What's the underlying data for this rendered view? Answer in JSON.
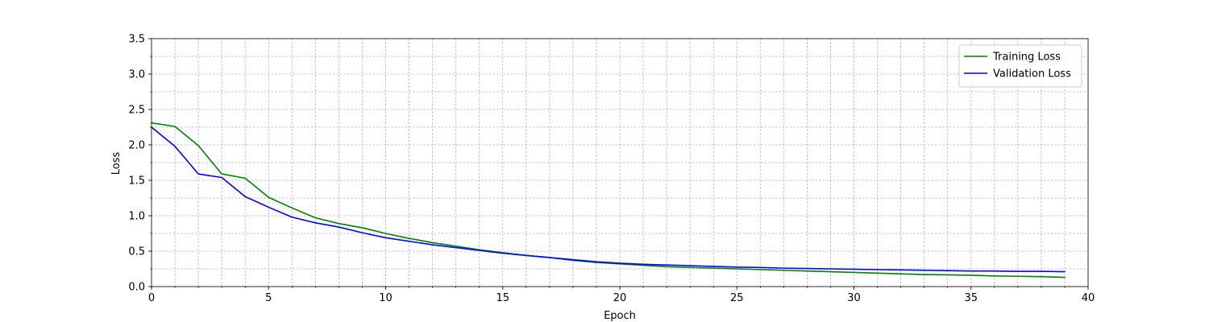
{
  "chart_data": {
    "type": "line",
    "title": "",
    "xlabel": "Epoch",
    "ylabel": "Loss",
    "xlim": [
      0,
      40
    ],
    "ylim": [
      0,
      3.5
    ],
    "xticks": [
      0,
      5,
      10,
      15,
      20,
      25,
      30,
      35,
      40
    ],
    "yticks": [
      0.0,
      0.5,
      1.0,
      1.5,
      2.0,
      2.5,
      3.0,
      3.5
    ],
    "xtick_labels": [
      "0",
      "5",
      "10",
      "15",
      "20",
      "25",
      "30",
      "35",
      "40"
    ],
    "ytick_labels": [
      "0.0",
      "0.5",
      "1.0",
      "1.5",
      "2.0",
      "2.5",
      "3.0",
      "3.5"
    ],
    "grid": true,
    "legend_position": "top-right",
    "x": [
      0,
      1,
      2,
      3,
      4,
      5,
      6,
      7,
      8,
      9,
      10,
      11,
      12,
      13,
      14,
      15,
      16,
      17,
      18,
      19,
      20,
      21,
      22,
      23,
      24,
      25,
      26,
      27,
      28,
      29,
      30,
      31,
      32,
      33,
      34,
      35,
      36,
      37,
      38,
      39
    ],
    "series": [
      {
        "name": "Training Loss",
        "color": "#008000",
        "values": [
          2.31,
          2.26,
          1.99,
          1.59,
          1.53,
          1.26,
          1.11,
          0.97,
          0.89,
          0.83,
          0.75,
          0.68,
          0.62,
          0.57,
          0.52,
          0.48,
          0.44,
          0.41,
          0.37,
          0.34,
          0.32,
          0.3,
          0.28,
          0.27,
          0.26,
          0.25,
          0.24,
          0.23,
          0.22,
          0.21,
          0.2,
          0.19,
          0.18,
          0.17,
          0.165,
          0.16,
          0.15,
          0.145,
          0.14,
          0.13
        ]
      },
      {
        "name": "Validation Loss",
        "color": "#0000ff",
        "values": [
          2.25,
          1.98,
          1.59,
          1.54,
          1.27,
          1.12,
          0.98,
          0.9,
          0.84,
          0.76,
          0.69,
          0.64,
          0.59,
          0.55,
          0.51,
          0.47,
          0.44,
          0.41,
          0.38,
          0.35,
          0.33,
          0.315,
          0.305,
          0.295,
          0.285,
          0.275,
          0.27,
          0.26,
          0.255,
          0.25,
          0.245,
          0.24,
          0.235,
          0.23,
          0.225,
          0.22,
          0.22,
          0.215,
          0.215,
          0.21
        ]
      }
    ]
  }
}
